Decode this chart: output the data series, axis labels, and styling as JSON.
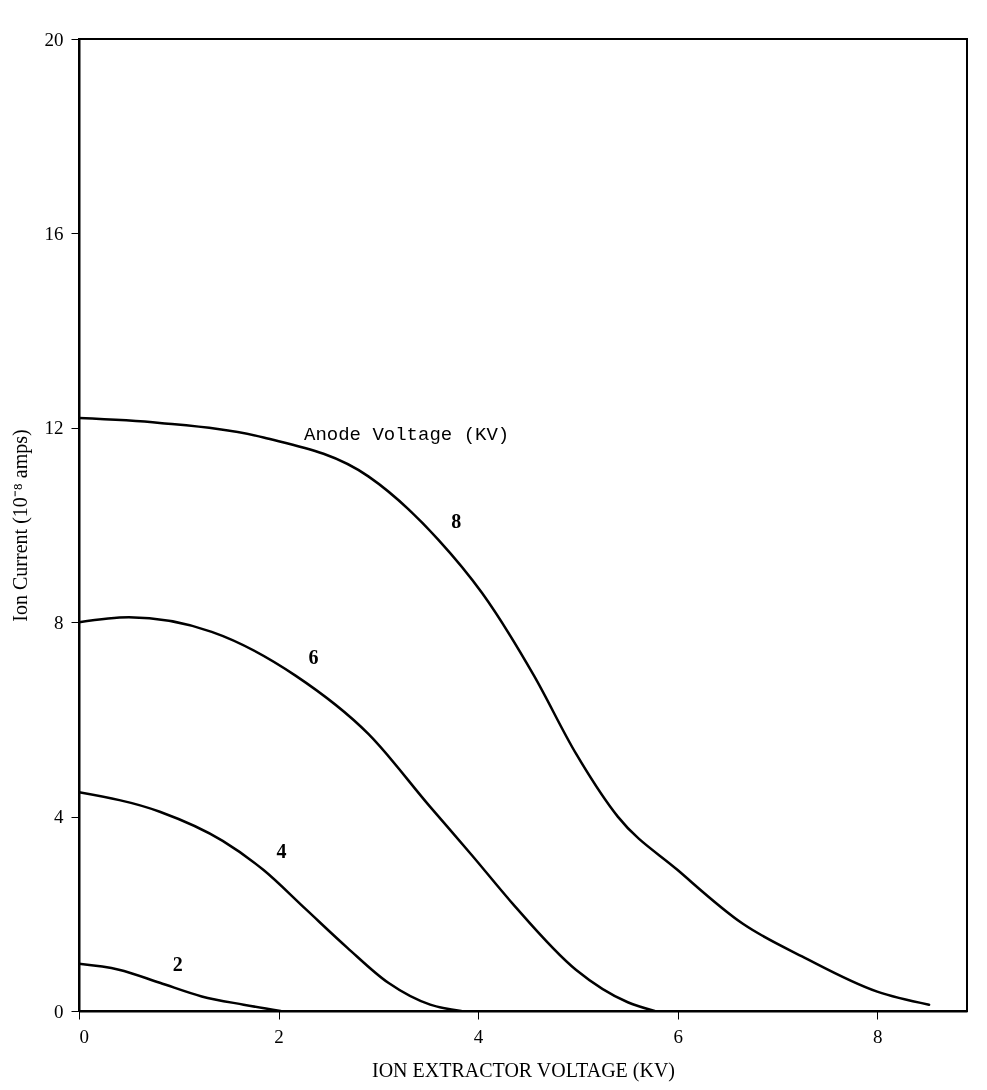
{
  "chart_data": {
    "type": "line",
    "xlabel": "ION EXTRACTOR VOLTAGE (KV)",
    "ylabel": "Ion Current (10⁻⁸ amps)",
    "xlim": [
      0,
      8.9
    ],
    "ylim": [
      0,
      20
    ],
    "xticks": [
      0,
      2,
      4,
      6,
      8
    ],
    "yticks": [
      0,
      4,
      8,
      12,
      16,
      20
    ],
    "grid": false,
    "marker": "none",
    "line_style": "solid",
    "series": [
      {
        "name": "8",
        "color": "#000000",
        "x": [
          0,
          0.81,
          1.85,
          2.9,
          3.6,
          4.04,
          4.56,
          4.98,
          5.4,
          6.0,
          6.65,
          7.27,
          8.0,
          8.52
        ],
        "values": [
          12.2,
          12.1,
          11.8,
          11.0,
          9.7,
          8.6,
          6.9,
          5.3,
          4.0,
          2.9,
          1.8,
          1.1,
          0.4,
          0.13
        ]
      },
      {
        "name": "6",
        "color": "#000000",
        "x": [
          0,
          0.5,
          1.33,
          2.17,
          2.9,
          3.52,
          3.94,
          4.35,
          4.98,
          5.5,
          5.77
        ],
        "values": [
          8.0,
          8.1,
          7.8,
          6.9,
          5.7,
          4.2,
          3.2,
          2.2,
          0.85,
          0.18,
          0
        ]
      },
      {
        "name": "4",
        "color": "#000000",
        "x": [
          0,
          0.81,
          1.44,
          1.85,
          2.27,
          2.69,
          3.1,
          3.52,
          3.83
        ],
        "values": [
          4.5,
          4.1,
          3.5,
          2.9,
          2.1,
          1.3,
          0.58,
          0.13,
          0
        ]
      },
      {
        "name": "2",
        "color": "#000000",
        "x": [
          0,
          0.4,
          0.81,
          1.23,
          1.65,
          2.02
        ],
        "values": [
          0.97,
          0.85,
          0.58,
          0.3,
          0.13,
          0
        ]
      }
    ],
    "annotations": [
      "Anode Voltage (KV)"
    ]
  }
}
